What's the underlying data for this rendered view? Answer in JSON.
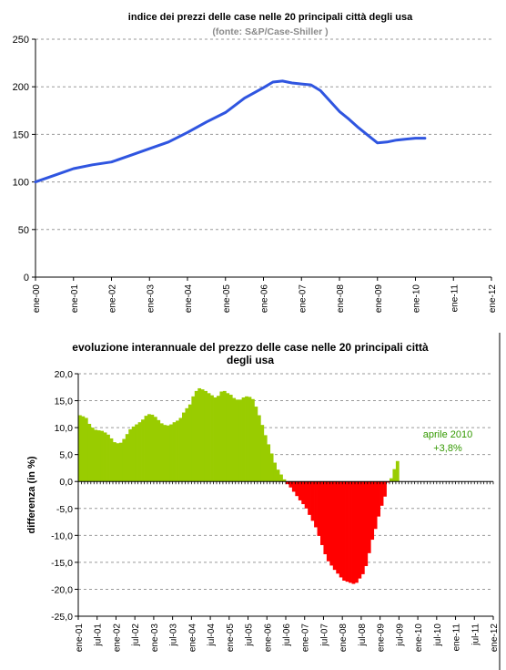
{
  "chart_data": [
    {
      "type": "line",
      "title": "indice dei prezzi delle case nelle 20 principali città degli usa",
      "subtitle": "(fonte:  S&P/Case-Shiller )",
      "xlabel": "",
      "ylabel": "",
      "ylim": [
        0,
        250
      ],
      "yticks": [
        "0",
        "50",
        "100",
        "150",
        "200",
        "250"
      ],
      "xticks": [
        "ene-00",
        "ene-01",
        "ene-02",
        "ene-03",
        "ene-04",
        "ene-05",
        "ene-06",
        "ene-07",
        "ene-08",
        "ene-09",
        "ene-10",
        "ene-11",
        "ene-12"
      ],
      "grid": true,
      "series_color": "#2f55e0",
      "series": [
        {
          "name": "",
          "x": [
            2000.0,
            2000.5,
            2001.0,
            2001.5,
            2002.0,
            2002.5,
            2003.0,
            2003.5,
            2004.0,
            2004.5,
            2005.0,
            2005.5,
            2006.0,
            2006.25,
            2006.5,
            2006.75,
            2007.0,
            2007.25,
            2007.5,
            2007.75,
            2008.0,
            2008.25,
            2008.5,
            2008.75,
            2009.0,
            2009.25,
            2009.5,
            2009.75,
            2010.0,
            2010.25
          ],
          "values": [
            100,
            107,
            114,
            118,
            121,
            128,
            135,
            142,
            152,
            163,
            173,
            188,
            199,
            205,
            206,
            204,
            203,
            202,
            196,
            185,
            174,
            166,
            157,
            149,
            141,
            142,
            144,
            145,
            146,
            146
          ]
        }
      ]
    },
    {
      "type": "bar",
      "title": "evoluzione interannuale del prezzo delle case nelle 20 principali città degli usa",
      "xlabel": "",
      "ylabel": "differenza (in %)",
      "ylim": [
        -25,
        20
      ],
      "yticks": [
        "20,0",
        "15,0",
        "10,0",
        "5,0",
        "0,0",
        "-5,0",
        "-10,0",
        "-15,0",
        "-20,0",
        "-25,0"
      ],
      "xticks": [
        "ene-01",
        "jul-01",
        "ene-02",
        "jul-02",
        "ene-03",
        "jul-03",
        "ene-04",
        "jul-04",
        "ene-05",
        "jul-05",
        "ene-06",
        "jul-06",
        "ene-07",
        "jul-07",
        "ene-08",
        "jul-08",
        "ene-09",
        "jul-09",
        "ene-10",
        "jul-10",
        "ene-11",
        "jul-11",
        "ene-12"
      ],
      "grid": true,
      "positive_color": "#99cc00",
      "negative_color": "#ff0000",
      "annotation": {
        "line1": "aprile 2010",
        "line2": "+3,8%",
        "color": "#339900"
      },
      "values": [
        12.3,
        12.1,
        11.8,
        10.7,
        10.0,
        9.6,
        9.5,
        9.4,
        9.1,
        8.7,
        8.0,
        7.3,
        7.1,
        7.2,
        7.9,
        8.8,
        9.7,
        10.2,
        10.6,
        11.0,
        11.5,
        12.2,
        12.5,
        12.4,
        12.0,
        11.4,
        10.8,
        10.5,
        10.4,
        10.6,
        11.0,
        11.3,
        11.8,
        12.8,
        13.6,
        14.3,
        15.8,
        16.8,
        17.3,
        17.1,
        16.8,
        16.4,
        16.0,
        15.6,
        15.9,
        16.7,
        16.8,
        16.4,
        16.1,
        15.5,
        15.2,
        15.2,
        15.6,
        15.8,
        15.7,
        15.3,
        13.9,
        12.3,
        10.5,
        8.6,
        6.9,
        5.2,
        3.5,
        2.2,
        1.3,
        0.4,
        -0.5,
        -1.1,
        -1.9,
        -2.7,
        -3.5,
        -4.2,
        -5.0,
        -6.2,
        -7.3,
        -8.5,
        -10.1,
        -11.8,
        -13.5,
        -14.8,
        -15.6,
        -16.4,
        -17.1,
        -17.8,
        -18.4,
        -18.6,
        -18.8,
        -19.0,
        -18.8,
        -18.0,
        -17.2,
        -15.7,
        -13.3,
        -10.8,
        -8.8,
        -6.5,
        -4.5,
        -2.8,
        -0.2,
        0.6,
        2.3,
        3.8
      ]
    }
  ]
}
